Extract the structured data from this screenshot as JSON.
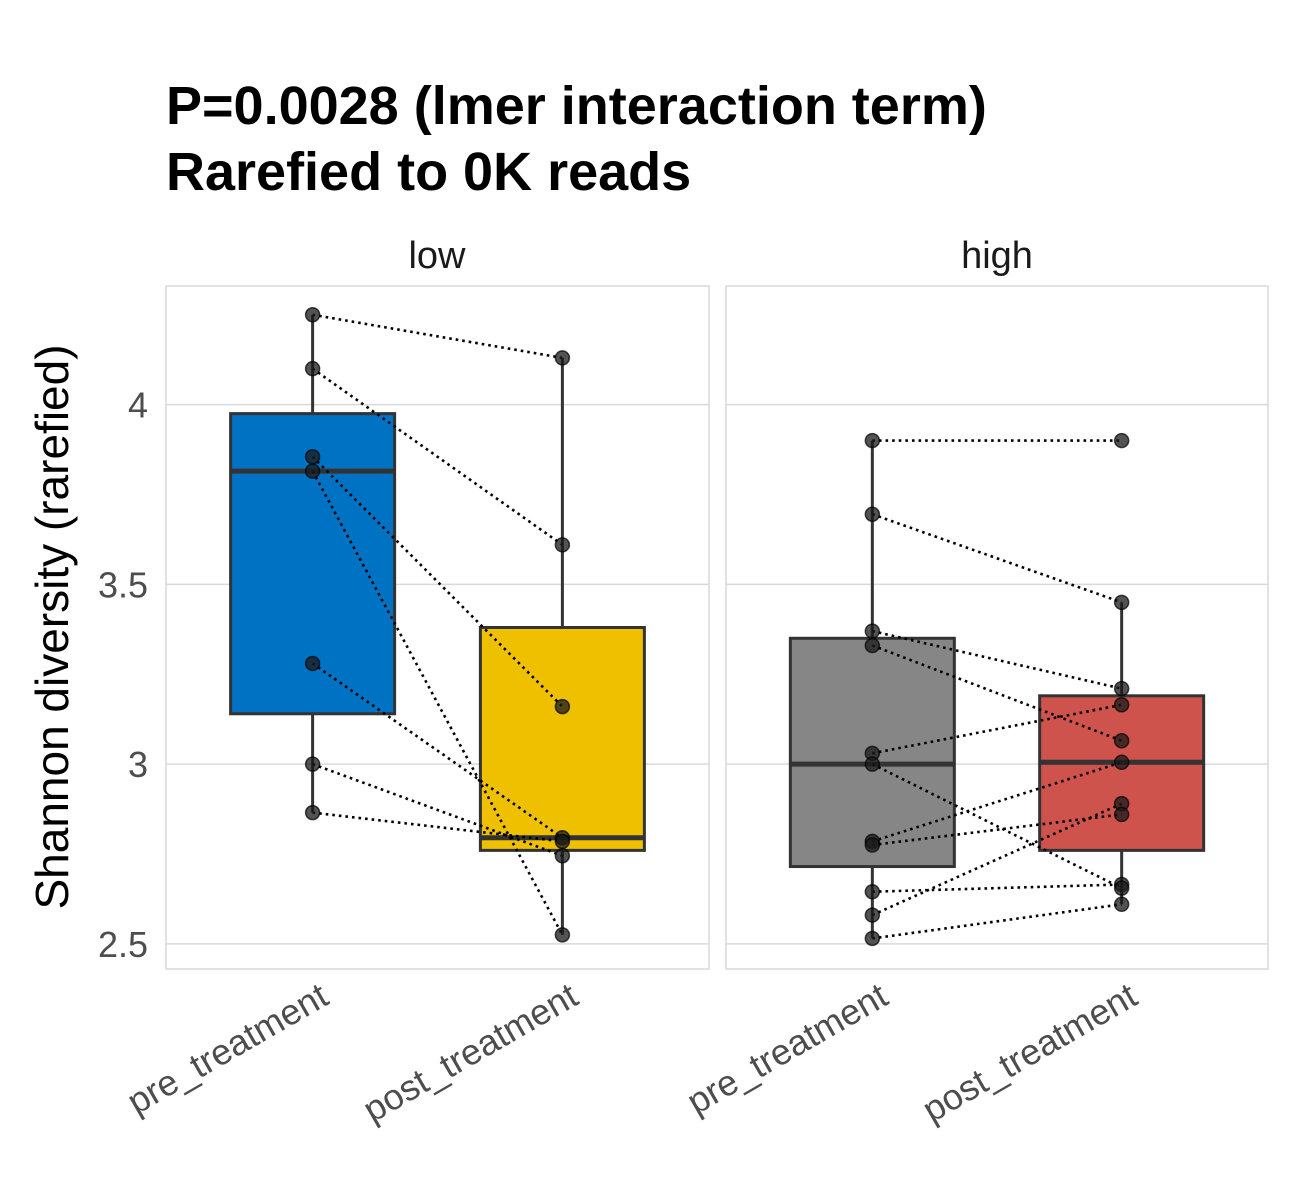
{
  "chart_data": {
    "type": "box",
    "title_lines": [
      "P=0.0028 (lmer interaction term)",
      "Rarefied to 0K reads"
    ],
    "ylabel": "Shannon diversity (rarefied)",
    "xlabel": "",
    "ylim": [
      2.43,
      4.33
    ],
    "yticks": [
      2.5,
      3,
      3.5,
      4
    ],
    "ytick_labels": [
      "2.5",
      "3",
      "3.5",
      "4"
    ],
    "grid": true,
    "legend": "none",
    "categories": [
      "pre_treatment",
      "post_treatment"
    ],
    "facets": [
      {
        "label": "low",
        "groups": [
          {
            "category": "pre_treatment",
            "color": "#0072C3",
            "q1": 3.14,
            "median": 3.815,
            "q3": 3.975,
            "whisker_low": 2.865,
            "whisker_high": 4.25,
            "points": [
              4.25,
              4.1,
              3.855,
              3.815,
              3.28,
              3.0,
              2.865
            ]
          },
          {
            "category": "post_treatment",
            "color": "#EFC000",
            "q1": 2.76,
            "median": 2.795,
            "q3": 3.38,
            "whisker_low": 2.525,
            "whisker_high": 4.13,
            "points": [
              4.13,
              3.61,
              3.16,
              2.795,
              2.785,
              2.745,
              2.525
            ]
          }
        ],
        "pairs": [
          [
            4.25,
            4.13
          ],
          [
            4.1,
            3.61
          ],
          [
            3.855,
            3.16
          ],
          [
            3.815,
            2.525
          ],
          [
            3.28,
            2.795
          ],
          [
            3.0,
            2.745
          ],
          [
            2.865,
            2.785
          ]
        ]
      },
      {
        "label": "high",
        "groups": [
          {
            "category": "pre_treatment",
            "color": "#868686",
            "q1": 2.715,
            "median": 3.0,
            "q3": 3.35,
            "whisker_low": 2.515,
            "whisker_high": 3.9,
            "points": [
              3.9,
              3.695,
              3.37,
              3.33,
              3.03,
              3.0,
              2.785,
              2.775,
              2.645,
              2.58,
              2.515
            ]
          },
          {
            "category": "post_treatment",
            "color": "#CD534C",
            "q1": 2.76,
            "median": 3.005,
            "q3": 3.19,
            "whisker_low": 2.61,
            "whisker_high": 3.45,
            "points": [
              3.9,
              3.45,
              3.21,
              3.165,
              3.065,
              3.005,
              2.89,
              2.86,
              2.665,
              2.655,
              2.61
            ]
          }
        ],
        "pairs": [
          [
            3.9,
            3.9
          ],
          [
            3.695,
            3.45
          ],
          [
            3.37,
            3.21
          ],
          [
            3.33,
            3.065
          ],
          [
            3.03,
            3.165
          ],
          [
            3.0,
            2.655
          ],
          [
            2.785,
            3.005
          ],
          [
            2.775,
            2.86
          ],
          [
            2.645,
            2.665
          ],
          [
            2.58,
            2.89
          ],
          [
            2.515,
            2.61
          ]
        ]
      }
    ]
  }
}
